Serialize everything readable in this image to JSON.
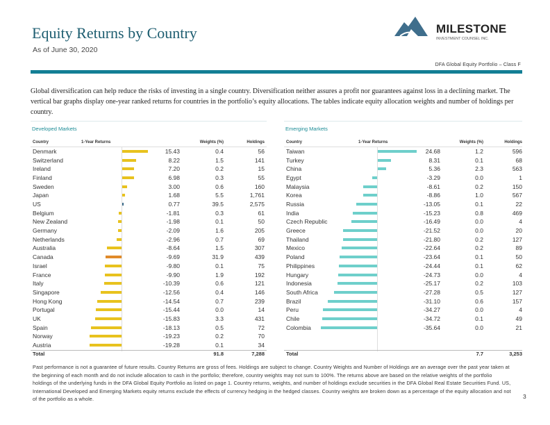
{
  "header": {
    "title": "Equity Returns by Country",
    "as_of": "As of June 30, 2020",
    "portfolio": "DFA Global Equity Portfolio – Class F",
    "logo": {
      "name": "MILESTONE",
      "tagline": "INVESTMENT COUNSEL INC."
    }
  },
  "intro": "Global diversification can help reduce the risks of investing in a single country. Diversification neither assures a profit nor guarantees against loss in a declining market. The vertical bar graphs display one-year ranked returns for countries in the portfolio’s equity allocations. The tables indicate equity allocation weights and number of holdings per country.",
  "colors": {
    "accent": "#137f95",
    "title": "#1d5d70",
    "developed_bar": "#e8c21e",
    "developed_highlight": "#e08a2a",
    "emerging_bar": "#6ecfcb"
  },
  "developed": {
    "section": "Developed Markets",
    "columns": [
      "Country",
      "1-Year Returns",
      "Weights (%)",
      "Holdings"
    ],
    "rows": [
      {
        "country": "Denmark",
        "ret": "15.43",
        "weight": "0.4",
        "holdings": "56"
      },
      {
        "country": "Switzerland",
        "ret": "8.22",
        "weight": "1.5",
        "holdings": "141"
      },
      {
        "country": "Ireland",
        "ret": "7.20",
        "weight": "0.2",
        "holdings": "15"
      },
      {
        "country": "Finland",
        "ret": "6.98",
        "weight": "0.3",
        "holdings": "55"
      },
      {
        "country": "Sweden",
        "ret": "3.00",
        "weight": "0.6",
        "holdings": "160"
      },
      {
        "country": "Japan",
        "ret": "1.68",
        "weight": "5.5",
        "holdings": "1,761"
      },
      {
        "country": "US",
        "ret": "0.77",
        "weight": "39.5",
        "holdings": "2,575"
      },
      {
        "country": "Belgium",
        "ret": "-1.81",
        "weight": "0.3",
        "holdings": "61"
      },
      {
        "country": "New Zealand",
        "ret": "-1.98",
        "weight": "0.1",
        "holdings": "50"
      },
      {
        "country": "Germany",
        "ret": "-2.09",
        "weight": "1.6",
        "holdings": "205"
      },
      {
        "country": "Netherlands",
        "ret": "-2.96",
        "weight": "0.7",
        "holdings": "69"
      },
      {
        "country": "Australia",
        "ret": "-8.64",
        "weight": "1.5",
        "holdings": "307"
      },
      {
        "country": "Canada",
        "ret": "-9.69",
        "weight": "31.9",
        "holdings": "439",
        "highlight": true
      },
      {
        "country": "Israel",
        "ret": "-9.80",
        "weight": "0.1",
        "holdings": "75"
      },
      {
        "country": "France",
        "ret": "-9.90",
        "weight": "1.9",
        "holdings": "192"
      },
      {
        "country": "Italy",
        "ret": "-10.39",
        "weight": "0.6",
        "holdings": "121"
      },
      {
        "country": "Singapore",
        "ret": "-12.56",
        "weight": "0.4",
        "holdings": "146"
      },
      {
        "country": "Hong Kong",
        "ret": "-14.54",
        "weight": "0.7",
        "holdings": "239"
      },
      {
        "country": "Portugal",
        "ret": "-15.44",
        "weight": "0.0",
        "holdings": "14"
      },
      {
        "country": "UK",
        "ret": "-15.83",
        "weight": "3.3",
        "holdings": "431"
      },
      {
        "country": "Spain",
        "ret": "-18.13",
        "weight": "0.5",
        "holdings": "72"
      },
      {
        "country": "Norway",
        "ret": "-19.23",
        "weight": "0.2",
        "holdings": "70"
      },
      {
        "country": "Austria",
        "ret": "-19.28",
        "weight": "0.1",
        "holdings": "34"
      }
    ],
    "total": {
      "label": "Total",
      "weight": "91.8",
      "holdings": "7,288"
    }
  },
  "emerging": {
    "section": "Emerging Markets",
    "columns": [
      "Country",
      "1-Year Returns",
      "Weights (%)",
      "Holdings"
    ],
    "rows": [
      {
        "country": "Taiwan",
        "ret": "24.68",
        "weight": "1.2",
        "holdings": "596"
      },
      {
        "country": "Turkey",
        "ret": "8.31",
        "weight": "0.1",
        "holdings": "68"
      },
      {
        "country": "China",
        "ret": "5.36",
        "weight": "2.3",
        "holdings": "563"
      },
      {
        "country": "Egypt",
        "ret": "-3.29",
        "weight": "0.0",
        "holdings": "1"
      },
      {
        "country": "Malaysia",
        "ret": "-8.61",
        "weight": "0.2",
        "holdings": "150"
      },
      {
        "country": "Korea",
        "ret": "-8.86",
        "weight": "1.0",
        "holdings": "567"
      },
      {
        "country": "Russia",
        "ret": "-13.05",
        "weight": "0.1",
        "holdings": "22"
      },
      {
        "country": "India",
        "ret": "-15.23",
        "weight": "0.8",
        "holdings": "469"
      },
      {
        "country": "Czech Republic",
        "ret": "-16.49",
        "weight": "0.0",
        "holdings": "4"
      },
      {
        "country": "Greece",
        "ret": "-21.52",
        "weight": "0.0",
        "holdings": "20"
      },
      {
        "country": "Thailand",
        "ret": "-21.80",
        "weight": "0.2",
        "holdings": "127"
      },
      {
        "country": "Mexico",
        "ret": "-22.64",
        "weight": "0.2",
        "holdings": "89"
      },
      {
        "country": "Poland",
        "ret": "-23.64",
        "weight": "0.1",
        "holdings": "50"
      },
      {
        "country": "Philippines",
        "ret": "-24.44",
        "weight": "0.1",
        "holdings": "62"
      },
      {
        "country": "Hungary",
        "ret": "-24.73",
        "weight": "0.0",
        "holdings": "4"
      },
      {
        "country": "Indonesia",
        "ret": "-25.17",
        "weight": "0.2",
        "holdings": "103"
      },
      {
        "country": "South Africa",
        "ret": "-27.28",
        "weight": "0.5",
        "holdings": "127"
      },
      {
        "country": "Brazil",
        "ret": "-31.10",
        "weight": "0.6",
        "holdings": "157"
      },
      {
        "country": "Peru",
        "ret": "-34.27",
        "weight": "0.0",
        "holdings": "4"
      },
      {
        "country": "Chile",
        "ret": "-34.72",
        "weight": "0.1",
        "holdings": "49"
      },
      {
        "country": "Colombia",
        "ret": "-35.64",
        "weight": "0.0",
        "holdings": "21"
      }
    ],
    "total": {
      "label": "Total",
      "weight": "7.7",
      "holdings": "3,253"
    }
  },
  "footnote": "Past performance is not a guarantee of future results. Country Returns are gross of fees. Holdings are subject to change. Country Weights and Number of Holdings are an average over the past year taken at the beginning of each month and do not include allocation to cash in the portfolio; therefore, country weights may not sum to 100%. The returns above are based on the relative weights of the portfolio holdings of the underlying funds in the DFA Global Equity Portfolio as listed on page 1. Country returns, weights, and number of holdings exclude securities in the DFA Global Real Estate Securities Fund. US, International Developed and Emerging Markets equity returns exclude the effects of currency hedging in the hedged classes. Country weights are broken down as a percentage of the equity allocation and not of the portfolio as a whole.",
  "page_number": "3"
}
